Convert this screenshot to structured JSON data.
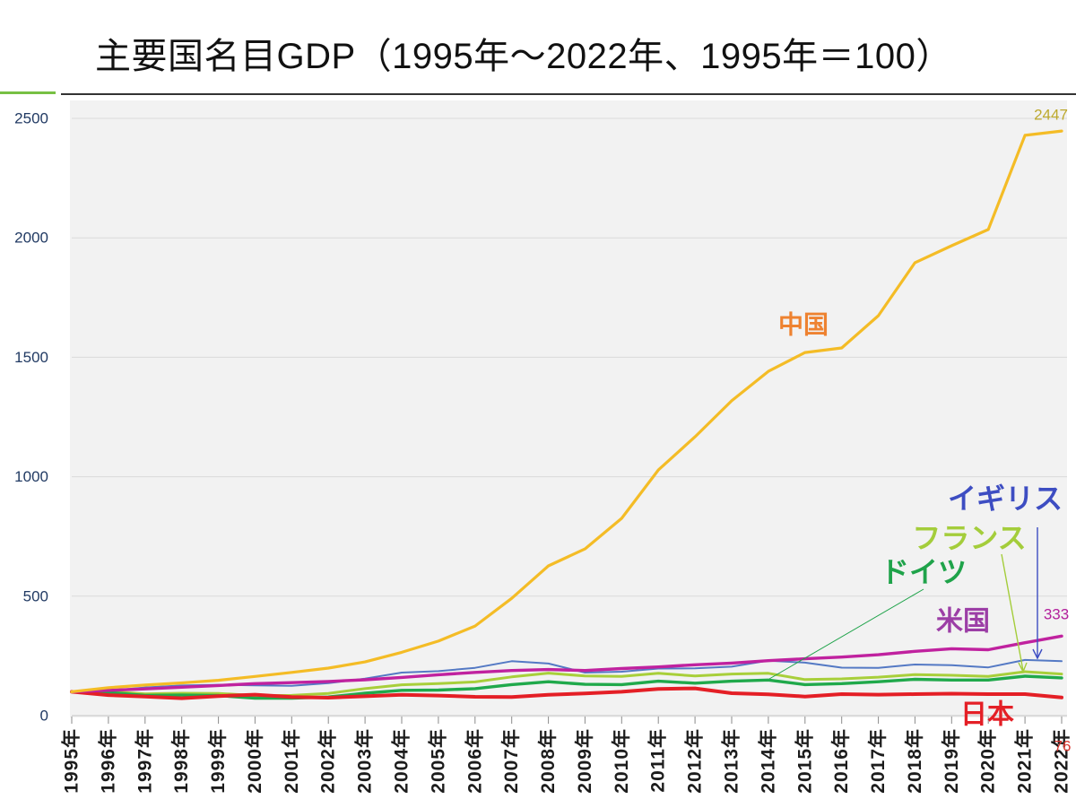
{
  "chart_data": {
    "type": "line",
    "title": "主要国名目GDP（1995年～2022年、1995年＝100）",
    "x": [
      "1995年",
      "1996年",
      "1997年",
      "1998年",
      "1999年",
      "2000年",
      "2001年",
      "2002年",
      "2003年",
      "2004年",
      "2005年",
      "2006年",
      "2007年",
      "2008年",
      "2009年",
      "2010年",
      "2011年",
      "2012年",
      "2013年",
      "2014年",
      "2015年",
      "2016年",
      "2017年",
      "2018年",
      "2019年",
      "2020年",
      "2021年",
      "2022年"
    ],
    "ylim": [
      0,
      2500
    ],
    "yticks": [
      0,
      500,
      1000,
      1500,
      2000,
      2500
    ],
    "grid": true,
    "series": [
      {
        "name": "中国",
        "color": "#f4bc26",
        "label_color": "#ee8230",
        "values": [
          100,
          117,
          128,
          137,
          148,
          164,
          181,
          199,
          225,
          265,
          312,
          375,
          491,
          627,
          698,
          826,
          1028,
          1167,
          1318,
          1441,
          1520,
          1539,
          1674,
          1896,
          1967,
          2035,
          2429,
          2447
        ],
        "data_label": "2447",
        "data_label_color": "#bda92d"
      },
      {
        "name": "米国",
        "color": "#c0229f",
        "label_color": "#9c3ea6",
        "values": [
          100,
          106,
          112,
          119,
          126,
          134,
          138,
          143,
          150,
          160,
          171,
          181,
          189,
          193,
          189,
          197,
          204,
          213,
          220,
          230,
          238,
          245,
          255,
          269,
          280,
          276,
          305,
          333
        ],
        "data_label": "333",
        "data_label_color": "#b3219c"
      },
      {
        "name": "イギリス",
        "color": "#5479c4",
        "label_color": "#3d4dc2",
        "values": [
          100,
          104,
          118,
          126,
          129,
          127,
          125,
          136,
          155,
          180,
          186,
          200,
          228,
          218,
          180,
          184,
          197,
          198,
          205,
          230,
          222,
          201,
          200,
          214,
          211,
          202,
          233,
          228
        ]
      },
      {
        "name": "フランス",
        "color": "#a8cf3a",
        "label_color": "#a4cd3b",
        "values": [
          100,
          101,
          91,
          94,
          93,
          84,
          85,
          93,
          113,
          129,
          134,
          141,
          162,
          178,
          166,
          164,
          177,
          166,
          174,
          177,
          151,
          154,
          161,
          172,
          169,
          164,
          184,
          174
        ]
      },
      {
        "name": "ドイツ",
        "color": "#20a94b",
        "label_color": "#1fa34a",
        "values": [
          100,
          97,
          85,
          86,
          84,
          73,
          73,
          78,
          94,
          106,
          107,
          113,
          130,
          142,
          131,
          130,
          144,
          136,
          144,
          149,
          130,
          134,
          142,
          152,
          149,
          149,
          165,
          158
        ]
      },
      {
        "name": "日本",
        "color": "#e41f26",
        "label_color": "#e41f26",
        "values": [
          100,
          86,
          80,
          73,
          82,
          88,
          78,
          75,
          81,
          87,
          84,
          79,
          78,
          87,
          93,
          100,
          112,
          114,
          94,
          89,
          80,
          90,
          88,
          90,
          92,
          90,
          90,
          76
        ],
        "data_label": "76",
        "data_label_color": "#d9362e"
      }
    ]
  }
}
